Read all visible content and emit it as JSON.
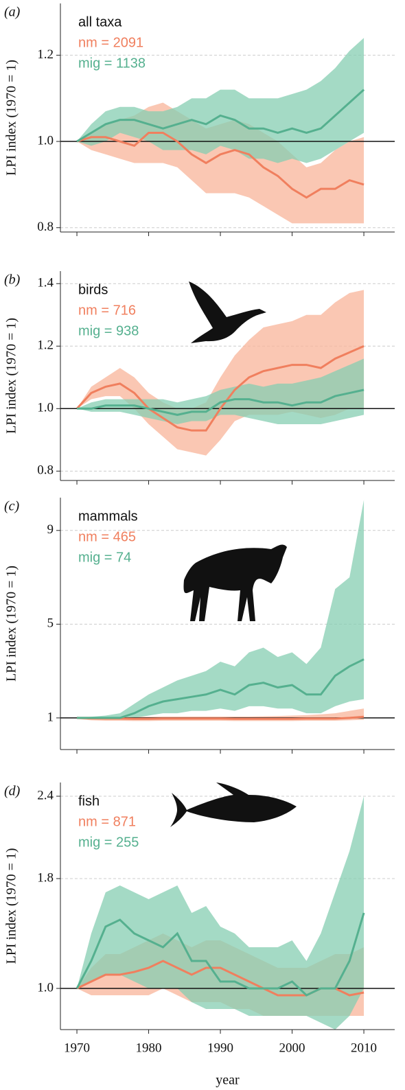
{
  "chart_data": [
    {
      "type": "line",
      "panel_label": "(a)",
      "title": "all taxa",
      "ylabel": "LPI index (1970 = 1)",
      "x": [
        1970,
        1972,
        1974,
        1976,
        1978,
        1980,
        1982,
        1984,
        1986,
        1988,
        1990,
        1992,
        1994,
        1996,
        1998,
        2000,
        2002,
        2004,
        2006,
        2008,
        2010
      ],
      "series": [
        {
          "name": "nm = 2091",
          "color": "#f07f5e",
          "band_color": "#f8b49a",
          "values": [
            1.0,
            1.01,
            1.01,
            1.0,
            0.99,
            1.02,
            1.02,
            1.0,
            0.97,
            0.95,
            0.97,
            0.98,
            0.97,
            0.94,
            0.92,
            0.89,
            0.87,
            0.89,
            0.89,
            0.91,
            0.9
          ],
          "lower": [
            1.0,
            0.98,
            0.97,
            0.96,
            0.95,
            0.95,
            0.95,
            0.94,
            0.91,
            0.88,
            0.88,
            0.88,
            0.87,
            0.85,
            0.83,
            0.81,
            0.81,
            0.81,
            0.81,
            0.81,
            0.81
          ],
          "upper": [
            1.0,
            1.02,
            1.04,
            1.05,
            1.06,
            1.08,
            1.09,
            1.07,
            1.05,
            1.03,
            1.04,
            1.05,
            1.04,
            1.02,
            1.0,
            0.97,
            0.94,
            0.95,
            0.98,
            1.0,
            1.01
          ]
        },
        {
          "name": "mig = 1138",
          "color": "#55b08f",
          "band_color": "#86cdb2",
          "values": [
            1.0,
            1.02,
            1.04,
            1.05,
            1.05,
            1.04,
            1.03,
            1.04,
            1.05,
            1.04,
            1.06,
            1.05,
            1.03,
            1.03,
            1.02,
            1.03,
            1.02,
            1.03,
            1.06,
            1.09,
            1.12
          ],
          "lower": [
            1.0,
            0.99,
            1.0,
            1.02,
            1.01,
            1.0,
            0.98,
            0.98,
            0.98,
            0.97,
            0.99,
            0.98,
            0.96,
            0.96,
            0.95,
            0.96,
            0.95,
            0.96,
            0.98,
            1.0,
            1.02
          ],
          "upper": [
            1.0,
            1.04,
            1.07,
            1.08,
            1.08,
            1.07,
            1.07,
            1.08,
            1.1,
            1.1,
            1.12,
            1.12,
            1.1,
            1.1,
            1.1,
            1.11,
            1.12,
            1.14,
            1.17,
            1.21,
            1.24
          ]
        }
      ],
      "xlim": [
        1967.7,
        2014.3
      ],
      "xticks": [
        1970,
        1980,
        1990,
        2000,
        2010
      ],
      "ylim": [
        0.79,
        1.32
      ],
      "yticks": [
        0.8,
        {
          "value": 1,
          "label": "1.0"
        },
        1.2
      ],
      "hline": 1,
      "grid": true
    },
    {
      "type": "line",
      "panel_label": "(b)",
      "title": "birds",
      "ylabel": "LPI index (1970 = 1)",
      "x": [
        1970,
        1972,
        1974,
        1976,
        1978,
        1980,
        1982,
        1984,
        1986,
        1988,
        1990,
        1992,
        1994,
        1996,
        1998,
        2000,
        2002,
        2004,
        2006,
        2008,
        2010
      ],
      "series": [
        {
          "name": "nm = 716",
          "color": "#f07f5e",
          "band_color": "#f8b49a",
          "values": [
            1.0,
            1.05,
            1.07,
            1.08,
            1.05,
            1.0,
            0.97,
            0.94,
            0.93,
            0.93,
            1.0,
            1.06,
            1.1,
            1.12,
            1.13,
            1.14,
            1.14,
            1.13,
            1.16,
            1.18,
            1.2
          ],
          "lower": [
            1.0,
            1.03,
            1.04,
            1.04,
            1.0,
            0.95,
            0.91,
            0.87,
            0.86,
            0.85,
            0.9,
            0.96,
            0.98,
            0.98,
            0.98,
            0.99,
            0.98,
            0.97,
            0.98,
            1.0,
            1.0
          ],
          "upper": [
            1.0,
            1.07,
            1.1,
            1.13,
            1.1,
            1.05,
            1.02,
            1.0,
            1.0,
            1.02,
            1.1,
            1.17,
            1.22,
            1.26,
            1.27,
            1.28,
            1.3,
            1.3,
            1.34,
            1.37,
            1.38
          ]
        },
        {
          "name": "mig = 938",
          "color": "#55b08f",
          "band_color": "#86cdb2",
          "values": [
            1.0,
            1.0,
            1.01,
            1.01,
            1.01,
            1.0,
            0.99,
            0.98,
            0.99,
            0.99,
            1.02,
            1.03,
            1.03,
            1.02,
            1.02,
            1.01,
            1.02,
            1.02,
            1.04,
            1.05,
            1.06
          ],
          "lower": [
            1.0,
            0.99,
            0.99,
            0.99,
            0.98,
            0.97,
            0.96,
            0.95,
            0.96,
            0.96,
            0.98,
            0.98,
            0.97,
            0.96,
            0.95,
            0.95,
            0.95,
            0.95,
            0.96,
            0.97,
            0.98
          ],
          "upper": [
            1.0,
            1.02,
            1.03,
            1.03,
            1.03,
            1.03,
            1.03,
            1.02,
            1.03,
            1.04,
            1.06,
            1.07,
            1.08,
            1.07,
            1.08,
            1.08,
            1.09,
            1.1,
            1.12,
            1.14,
            1.16
          ]
        }
      ],
      "xlim": [
        1967.7,
        2014.3
      ],
      "xticks": [
        1970,
        1980,
        1990,
        2000,
        2010
      ],
      "ylim": [
        0.77,
        1.44
      ],
      "yticks": [
        0.8,
        {
          "value": 1,
          "label": "1.0"
        },
        1.2,
        1.4
      ],
      "hline": 1,
      "grid": true
    },
    {
      "type": "line",
      "panel_label": "(c)",
      "title": "mammals",
      "ylabel": "LPI index (1970 = 1)",
      "x": [
        1970,
        1972,
        1974,
        1976,
        1978,
        1980,
        1982,
        1984,
        1986,
        1988,
        1990,
        1992,
        1994,
        1996,
        1998,
        2000,
        2002,
        2004,
        2006,
        2008,
        2010
      ],
      "series": [
        {
          "name": "nm = 465",
          "color": "#f07f5e",
          "band_color": "#f8b49a",
          "values": [
            1.0,
            0.98,
            0.97,
            0.97,
            0.96,
            0.96,
            0.97,
            0.97,
            0.97,
            0.97,
            0.97,
            0.96,
            0.96,
            0.96,
            0.96,
            0.96,
            0.97,
            0.97,
            0.97,
            1.0,
            1.05
          ],
          "lower": [
            0.95,
            0.9,
            0.88,
            0.88,
            0.87,
            0.87,
            0.88,
            0.88,
            0.88,
            0.88,
            0.88,
            0.87,
            0.87,
            0.87,
            0.87,
            0.87,
            0.88,
            0.88,
            0.88,
            0.9,
            0.92
          ],
          "upper": [
            1.05,
            1.05,
            1.05,
            1.05,
            1.05,
            1.05,
            1.06,
            1.06,
            1.06,
            1.06,
            1.06,
            1.06,
            1.06,
            1.07,
            1.08,
            1.1,
            1.12,
            1.15,
            1.2,
            1.3,
            1.4
          ]
        },
        {
          "name": "mig = 74",
          "color": "#55b08f",
          "band_color": "#86cdb2",
          "values": [
            1.0,
            1.0,
            1.0,
            1.0,
            1.2,
            1.5,
            1.7,
            1.8,
            1.9,
            2.0,
            2.2,
            2.0,
            2.4,
            2.5,
            2.3,
            2.4,
            2.0,
            2.0,
            2.8,
            3.2,
            3.5
          ],
          "lower": [
            1.0,
            0.95,
            0.95,
            0.95,
            1.0,
            1.1,
            1.2,
            1.2,
            1.3,
            1.3,
            1.4,
            1.3,
            1.5,
            1.5,
            1.4,
            1.4,
            1.2,
            1.2,
            1.5,
            1.7,
            1.8
          ],
          "upper": [
            1.0,
            1.05,
            1.1,
            1.2,
            1.6,
            2.0,
            2.3,
            2.6,
            2.8,
            3.0,
            3.4,
            3.2,
            3.8,
            4.0,
            3.6,
            3.8,
            3.3,
            4.0,
            6.5,
            7.0,
            10.3
          ]
        }
      ],
      "xlim": [
        1967.7,
        2014.3
      ],
      "xticks": [
        1970,
        1980,
        1990,
        2000,
        2010
      ],
      "ylim": [
        -0.35,
        10.4
      ],
      "yticks": [
        1,
        5,
        9
      ],
      "hline": 1,
      "grid": true
    },
    {
      "type": "line",
      "panel_label": "(d)",
      "title": "fish",
      "ylabel": "LPI index (1970 = 1)",
      "xlabel": "year",
      "x": [
        1970,
        1972,
        1974,
        1976,
        1978,
        1980,
        1982,
        1984,
        1986,
        1988,
        1990,
        1992,
        1994,
        1996,
        1998,
        2000,
        2002,
        2004,
        2006,
        2008,
        2010
      ],
      "series": [
        {
          "name": "nm = 871",
          "color": "#f07f5e",
          "band_color": "#f8b49a",
          "values": [
            1.0,
            1.05,
            1.1,
            1.1,
            1.12,
            1.15,
            1.2,
            1.15,
            1.1,
            1.15,
            1.15,
            1.1,
            1.05,
            1.0,
            0.95,
            0.95,
            0.95,
            1.0,
            1.0,
            0.95,
            0.97
          ],
          "lower": [
            1.0,
            0.95,
            0.95,
            0.95,
            0.95,
            0.95,
            1.0,
            0.95,
            0.9,
            0.9,
            0.9,
            0.85,
            0.85,
            0.8,
            0.8,
            0.8,
            0.8,
            0.8,
            0.8,
            0.8,
            0.8
          ],
          "upper": [
            1.0,
            1.15,
            1.25,
            1.25,
            1.3,
            1.35,
            1.4,
            1.35,
            1.3,
            1.35,
            1.35,
            1.3,
            1.25,
            1.2,
            1.15,
            1.15,
            1.15,
            1.2,
            1.25,
            1.25,
            1.3
          ]
        },
        {
          "name": "mig = 255",
          "color": "#55b08f",
          "band_color": "#86cdb2",
          "values": [
            1.0,
            1.2,
            1.45,
            1.5,
            1.4,
            1.35,
            1.3,
            1.4,
            1.2,
            1.2,
            1.05,
            1.05,
            1.0,
            1.0,
            1.0,
            1.05,
            0.95,
            1.0,
            1.0,
            1.2,
            1.55
          ],
          "lower": [
            1.0,
            1.05,
            1.1,
            1.1,
            1.05,
            1.0,
            1.0,
            1.0,
            0.9,
            0.85,
            0.85,
            0.85,
            0.8,
            0.8,
            0.8,
            0.8,
            0.8,
            0.75,
            0.7,
            0.8,
            1.0
          ],
          "upper": [
            1.0,
            1.4,
            1.7,
            1.75,
            1.7,
            1.65,
            1.7,
            1.75,
            1.55,
            1.6,
            1.45,
            1.4,
            1.3,
            1.3,
            1.3,
            1.35,
            1.2,
            1.4,
            1.7,
            2.0,
            2.4
          ]
        }
      ],
      "xlim": [
        1967.7,
        2014.3
      ],
      "xticks": [
        1970,
        1980,
        1990,
        2000,
        2010
      ],
      "ylim": [
        0.7,
        2.5
      ],
      "yticks": [
        {
          "value": 1,
          "label": "1.0"
        },
        1.8,
        2.4
      ],
      "hline": 1,
      "grid": true
    }
  ]
}
